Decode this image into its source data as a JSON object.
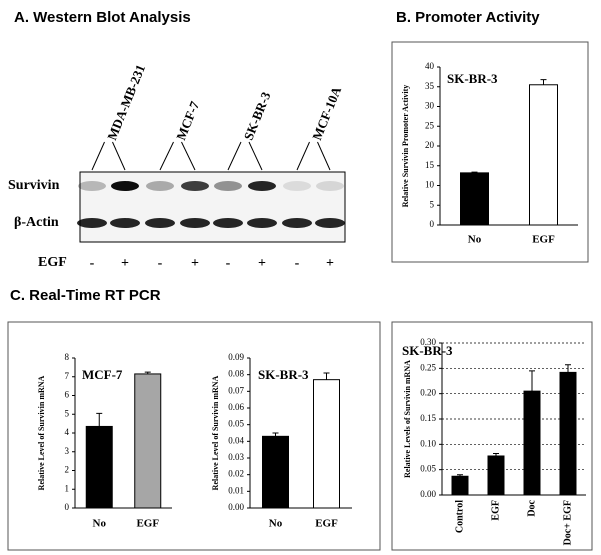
{
  "figure": {
    "panel_a_title": "A. Western Blot Analysis",
    "panel_b_title": "B. Promoter Activity",
    "panel_c_title": "C. Real-Time RT PCR",
    "cell_lines": [
      "MDA-MB-231",
      "MCF-7",
      "SK-BR-3",
      "MCF-10A"
    ],
    "blot_rows": [
      "Survivin",
      "β-Actin"
    ],
    "treatment_label": "EGF",
    "treatment": [
      "-",
      "+",
      "-",
      "+",
      "-",
      "+",
      "-",
      "+"
    ]
  },
  "chart_data": [
    {
      "type": "bar",
      "title": "SK-BR-3",
      "ylabel": "Relative Survivin Promoter Activity",
      "categories": [
        "No",
        "EGF"
      ],
      "values": [
        13.2,
        35.5
      ],
      "errors": [
        0.2,
        1.3
      ],
      "colors": [
        "#000000",
        "#ffffff"
      ],
      "ylim": [
        0,
        40
      ],
      "yticks": [
        0,
        5,
        10,
        15,
        20,
        25,
        30,
        35,
        40
      ],
      "grid": false
    },
    {
      "type": "bar",
      "title": "MCF-7",
      "ylabel": "Relative Level of Survivin mRNA",
      "categories": [
        "No",
        "EGF"
      ],
      "values": [
        4.35,
        7.15
      ],
      "errors": [
        0.7,
        0.1
      ],
      "colors": [
        "#000000",
        "#a6a6a6"
      ],
      "ylim": [
        0,
        8
      ],
      "yticks": [
        0,
        1,
        2,
        3,
        4,
        5,
        6,
        7,
        8
      ],
      "grid": false
    },
    {
      "type": "bar",
      "title": "SK-BR-3",
      "ylabel": "Relative Level of Survivin mRNA",
      "categories": [
        "No",
        "EGF"
      ],
      "values": [
        0.043,
        0.077
      ],
      "errors": [
        0.002,
        0.004
      ],
      "colors": [
        "#000000",
        "#ffffff"
      ],
      "ylim": [
        0,
        0.09
      ],
      "yticks": [
        {
          "value": 0,
          "label": "0.00"
        },
        {
          "value": 0.01,
          "label": "0.01"
        },
        {
          "value": 0.02,
          "label": "0.02"
        },
        {
          "value": 0.03,
          "label": "0.03"
        },
        {
          "value": 0.04,
          "label": "0.04"
        },
        {
          "value": 0.05,
          "label": "0.05"
        },
        {
          "value": 0.06,
          "label": "0.06"
        },
        {
          "value": 0.07,
          "label": "0.07"
        },
        {
          "value": 0.08,
          "label": "0.08"
        },
        {
          "value": 0.09,
          "label": "0.09"
        }
      ],
      "grid": false
    },
    {
      "type": "bar",
      "title": "SK-BR-3",
      "ylabel": "Relative Levels of Survivin mRNA",
      "categories": [
        "Control",
        "EGF",
        "Doc",
        "Doc+ EGF"
      ],
      "values": [
        0.037,
        0.077,
        0.205,
        0.242
      ],
      "errors": [
        0.003,
        0.005,
        0.04,
        0.015
      ],
      "colors": [
        "#000000",
        "#000000",
        "#000000",
        "#000000"
      ],
      "ylim": [
        0,
        0.3
      ],
      "yticks": [
        {
          "value": 0,
          "label": "0.00"
        },
        {
          "value": 0.05,
          "label": "0.05"
        },
        {
          "value": 0.1,
          "label": "0.10"
        },
        {
          "value": 0.15,
          "label": "0.15"
        },
        {
          "value": 0.2,
          "label": "0.20"
        },
        {
          "value": 0.25,
          "label": "0.25"
        },
        {
          "value": 0.3,
          "label": "0.30"
        }
      ],
      "grid": true
    }
  ]
}
